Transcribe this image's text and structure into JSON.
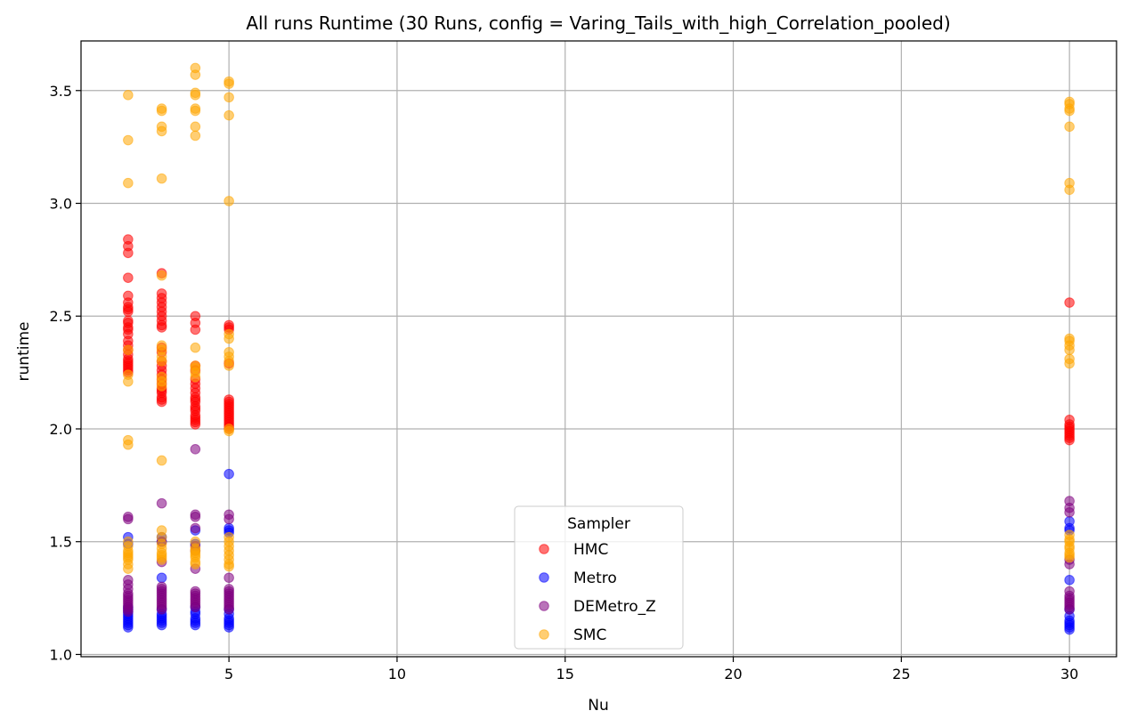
{
  "chart_data": {
    "type": "scatter",
    "title": "All runs Runtime (30 Runs, config = Varing_Tails_with_high_Correlation_pooled)",
    "xlabel": "Nu",
    "ylabel": "runtime",
    "xlim": [
      0.6,
      31.4
    ],
    "ylim": [
      0.99,
      3.72
    ],
    "xticks": [
      5,
      10,
      15,
      20,
      25,
      30
    ],
    "yticks": [
      1.0,
      1.5,
      2.0,
      2.5,
      3.0,
      3.5
    ],
    "xtick_labels": [
      "5",
      "10",
      "15",
      "20",
      "25",
      "30"
    ],
    "ytick_labels": [
      "1.0",
      "1.5",
      "2.0",
      "2.5",
      "3.0",
      "3.5"
    ],
    "grid": true,
    "legend": {
      "title": "Sampler",
      "position": "lower-center"
    },
    "series": [
      {
        "name": "HMC",
        "color": "#ff0000",
        "points": [
          {
            "x": 2,
            "ys": [
              2.84,
              2.81,
              2.78,
              2.67,
              2.59,
              2.56,
              2.54,
              2.53,
              2.52,
              2.48,
              2.47,
              2.45,
              2.44,
              2.42,
              2.39,
              2.37,
              2.35,
              2.33,
              2.31,
              2.3,
              2.29,
              2.28,
              2.27,
              2.26,
              2.25
            ]
          },
          {
            "x": 3,
            "ys": [
              2.69,
              2.6,
              2.58,
              2.56,
              2.54,
              2.52,
              2.5,
              2.48,
              2.46,
              2.45,
              2.36,
              2.34,
              2.3,
              2.28,
              2.26,
              2.24,
              2.22,
              2.2,
              2.18,
              2.17,
              2.16,
              2.14,
              2.13,
              2.12
            ]
          },
          {
            "x": 4,
            "ys": [
              2.5,
              2.47,
              2.44,
              2.28,
              2.26,
              2.22,
              2.2,
              2.18,
              2.16,
              2.14,
              2.13,
              2.12,
              2.1,
              2.09,
              2.08,
              2.06,
              2.05,
              2.04,
              2.03,
              2.02
            ]
          },
          {
            "x": 5,
            "ys": [
              2.46,
              2.45,
              2.44,
              2.29,
              2.13,
              2.12,
              2.11,
              2.1,
              2.09,
              2.08,
              2.07,
              2.06,
              2.05,
              2.04,
              2.03,
              2.02,
              2.01,
              2.0
            ]
          },
          {
            "x": 30,
            "ys": [
              2.56,
              2.04,
              2.02,
              2.01,
              2.0,
              1.99,
              1.98,
              1.97,
              1.96,
              1.95
            ]
          }
        ]
      },
      {
        "name": "Metro",
        "color": "#0000ff",
        "points": [
          {
            "x": 2,
            "ys": [
              1.52,
              1.49,
              1.21,
              1.2,
              1.19,
              1.18,
              1.17,
              1.16,
              1.15,
              1.14,
              1.13,
              1.12
            ]
          },
          {
            "x": 3,
            "ys": [
              1.52,
              1.5,
              1.34,
              1.2,
              1.18,
              1.17,
              1.16,
              1.15,
              1.14,
              1.13
            ]
          },
          {
            "x": 4,
            "ys": [
              1.55,
              1.49,
              1.21,
              1.19,
              1.18,
              1.16,
              1.15,
              1.14,
              1.13
            ]
          },
          {
            "x": 5,
            "ys": [
              1.8,
              1.56,
              1.55,
              1.54,
              1.2,
              1.18,
              1.16,
              1.15,
              1.14,
              1.13,
              1.12
            ]
          },
          {
            "x": 30,
            "ys": [
              1.59,
              1.56,
              1.55,
              1.33,
              1.2,
              1.17,
              1.15,
              1.14,
              1.13,
              1.12,
              1.11
            ]
          }
        ]
      },
      {
        "name": "DEMetro_Z",
        "color": "#800080",
        "points": [
          {
            "x": 2,
            "ys": [
              1.61,
              1.6,
              1.33,
              1.31,
              1.29,
              1.27,
              1.26,
              1.25,
              1.24,
              1.23,
              1.22,
              1.21,
              1.2,
              1.19
            ]
          },
          {
            "x": 3,
            "ys": [
              1.67,
              1.5,
              1.41,
              1.3,
              1.29,
              1.28,
              1.27,
              1.26,
              1.25,
              1.24,
              1.23,
              1.22,
              1.21,
              1.2
            ]
          },
          {
            "x": 4,
            "ys": [
              1.91,
              1.62,
              1.61,
              1.56,
              1.48,
              1.46,
              1.38,
              1.28,
              1.27,
              1.26,
              1.25,
              1.24,
              1.23,
              1.22,
              1.21
            ]
          },
          {
            "x": 5,
            "ys": [
              1.62,
              1.6,
              1.34,
              1.29,
              1.28,
              1.27,
              1.26,
              1.25,
              1.24,
              1.23,
              1.22,
              1.21,
              1.2
            ]
          },
          {
            "x": 30,
            "ys": [
              1.68,
              1.65,
              1.63,
              1.42,
              1.4,
              1.28,
              1.26,
              1.25,
              1.24,
              1.23,
              1.22,
              1.21,
              1.2
            ]
          }
        ]
      },
      {
        "name": "SMC",
        "color": "#ffa500",
        "points": [
          {
            "x": 2,
            "ys": [
              3.48,
              3.28,
              3.09,
              2.35,
              2.24,
              2.21,
              1.95,
              1.93,
              1.5,
              1.48,
              1.46,
              1.45,
              1.44,
              1.43,
              1.42,
              1.4,
              1.38
            ]
          },
          {
            "x": 3,
            "ys": [
              3.42,
              3.41,
              3.34,
              3.32,
              3.11,
              2.68,
              2.37,
              2.35,
              2.32,
              2.3,
              2.23,
              2.21,
              2.19,
              1.86,
              1.55,
              1.52,
              1.49,
              1.47,
              1.45,
              1.44,
              1.43,
              1.42
            ]
          },
          {
            "x": 4,
            "ys": [
              3.6,
              3.57,
              3.49,
              3.48,
              3.42,
              3.41,
              3.34,
              3.3,
              2.36,
              2.28,
              2.27,
              2.25,
              2.23,
              1.5,
              1.47,
              1.46,
              1.45,
              1.44,
              1.43,
              1.41,
              1.4
            ]
          },
          {
            "x": 5,
            "ys": [
              3.54,
              3.53,
              3.47,
              3.39,
              3.01,
              2.42,
              2.4,
              2.34,
              2.32,
              2.3,
              2.28,
              2.0,
              1.99,
              1.52,
              1.5,
              1.48,
              1.46,
              1.44,
              1.42,
              1.4,
              1.39
            ]
          },
          {
            "x": 30,
            "ys": [
              3.45,
              3.44,
              3.42,
              3.41,
              3.34,
              3.09,
              3.06,
              2.4,
              2.39,
              2.37,
              2.35,
              2.31,
              2.29,
              1.53,
              1.51,
              1.5,
              1.48,
              1.47,
              1.45,
              1.44,
              1.43
            ]
          }
        ]
      }
    ]
  }
}
